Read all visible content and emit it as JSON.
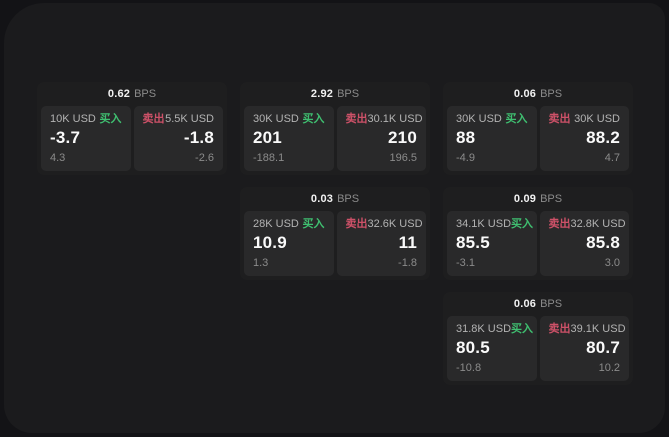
{
  "colors": {
    "buy_green": "#3fbf70",
    "sell_red": "#cd5168",
    "page_bg": "#131316",
    "panel_bg": "#1b1b1d",
    "card_bg": "#1e1e1f",
    "cell_bg": "#29292a"
  },
  "cards": [
    {
      "bps_value": "0.62",
      "bps_unit": "BPS",
      "buy": {
        "amount": "10K USD",
        "side": "买入",
        "value": "-3.7",
        "delta": "4.3"
      },
      "sell": {
        "amount": "5.5K USD",
        "side": "卖出",
        "value": "-1.8",
        "delta": "-2.6"
      }
    },
    {
      "bps_value": "2.92",
      "bps_unit": "BPS",
      "buy": {
        "amount": "30K USD",
        "side": "买入",
        "value": "201",
        "delta": "-188.1"
      },
      "sell": {
        "amount": "30.1K USD",
        "side": "卖出",
        "value": "210",
        "delta": "196.5"
      }
    },
    {
      "bps_value": "0.06",
      "bps_unit": "BPS",
      "buy": {
        "amount": "30K USD",
        "side": "买入",
        "value": "88",
        "delta": "-4.9"
      },
      "sell": {
        "amount": "30K USD",
        "side": "卖出",
        "value": "88.2",
        "delta": "4.7"
      }
    },
    {
      "bps_value": "0.03",
      "bps_unit": "BPS",
      "buy": {
        "amount": "28K USD",
        "side": "买入",
        "value": "10.9",
        "delta": "1.3"
      },
      "sell": {
        "amount": "32.6K USD",
        "side": "卖出",
        "value": "11",
        "delta": "-1.8"
      }
    },
    {
      "bps_value": "0.09",
      "bps_unit": "BPS",
      "buy": {
        "amount": "34.1K USD",
        "side": "买入",
        "value": "85.5",
        "delta": "-3.1"
      },
      "sell": {
        "amount": "32.8K USD",
        "side": "卖出",
        "value": "85.8",
        "delta": "3.0"
      }
    },
    {
      "bps_value": "0.06",
      "bps_unit": "BPS",
      "buy": {
        "amount": "31.8K USD",
        "side": "买入",
        "value": "80.5",
        "delta": "-10.8"
      },
      "sell": {
        "amount": "39.1K USD",
        "side": "卖出",
        "value": "80.7",
        "delta": "10.2"
      }
    }
  ]
}
